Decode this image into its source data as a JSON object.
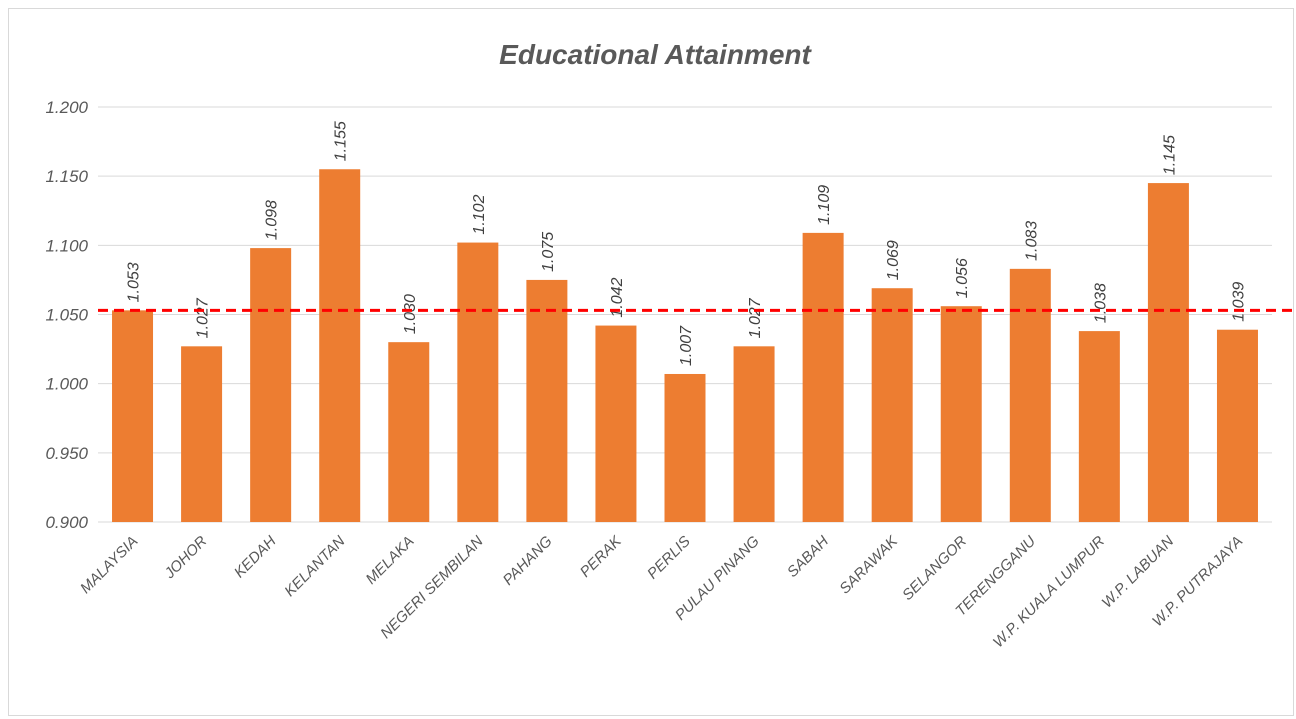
{
  "chart_data": {
    "type": "bar",
    "title": "Educational Attainment",
    "xlabel": "",
    "ylabel": "",
    "ylim": [
      0.9,
      1.2
    ],
    "y_ticks": [
      "0.900",
      "0.950",
      "1.000",
      "1.050",
      "1.100",
      "1.150",
      "1.200"
    ],
    "grid": true,
    "categories": [
      "MALAYSIA",
      "JOHOR",
      "KEDAH",
      "KELANTAN",
      "MELAKA",
      "NEGERI SEMBILAN",
      "PAHANG",
      "PERAK",
      "PERLIS",
      "PULAU PINANG",
      "SABAH",
      "SARAWAK",
      "SELANGOR",
      "TERENGGANU",
      "W.P. KUALA LUMPUR",
      "W.P. LABUAN",
      "W.P. PUTRAJAYA"
    ],
    "values": [
      1.053,
      1.027,
      1.098,
      1.155,
      1.03,
      1.102,
      1.075,
      1.042,
      1.007,
      1.027,
      1.109,
      1.069,
      1.056,
      1.083,
      1.038,
      1.145,
      1.039
    ],
    "data_labels": [
      "1.053",
      "1.027",
      "1.098",
      "1.155",
      "1.030",
      "1.102",
      "1.075",
      "1.042",
      "1.007",
      "1.027",
      "1.109",
      "1.069",
      "1.056",
      "1.083",
      "1.038",
      "1.145",
      "1.039"
    ],
    "reference_line": {
      "value": 1.053,
      "style": "dashed"
    },
    "colors": {
      "bar": "#ED7D31",
      "reference_line": "#FF0000",
      "grid": "#D9D9D9",
      "text": "#595959"
    }
  }
}
